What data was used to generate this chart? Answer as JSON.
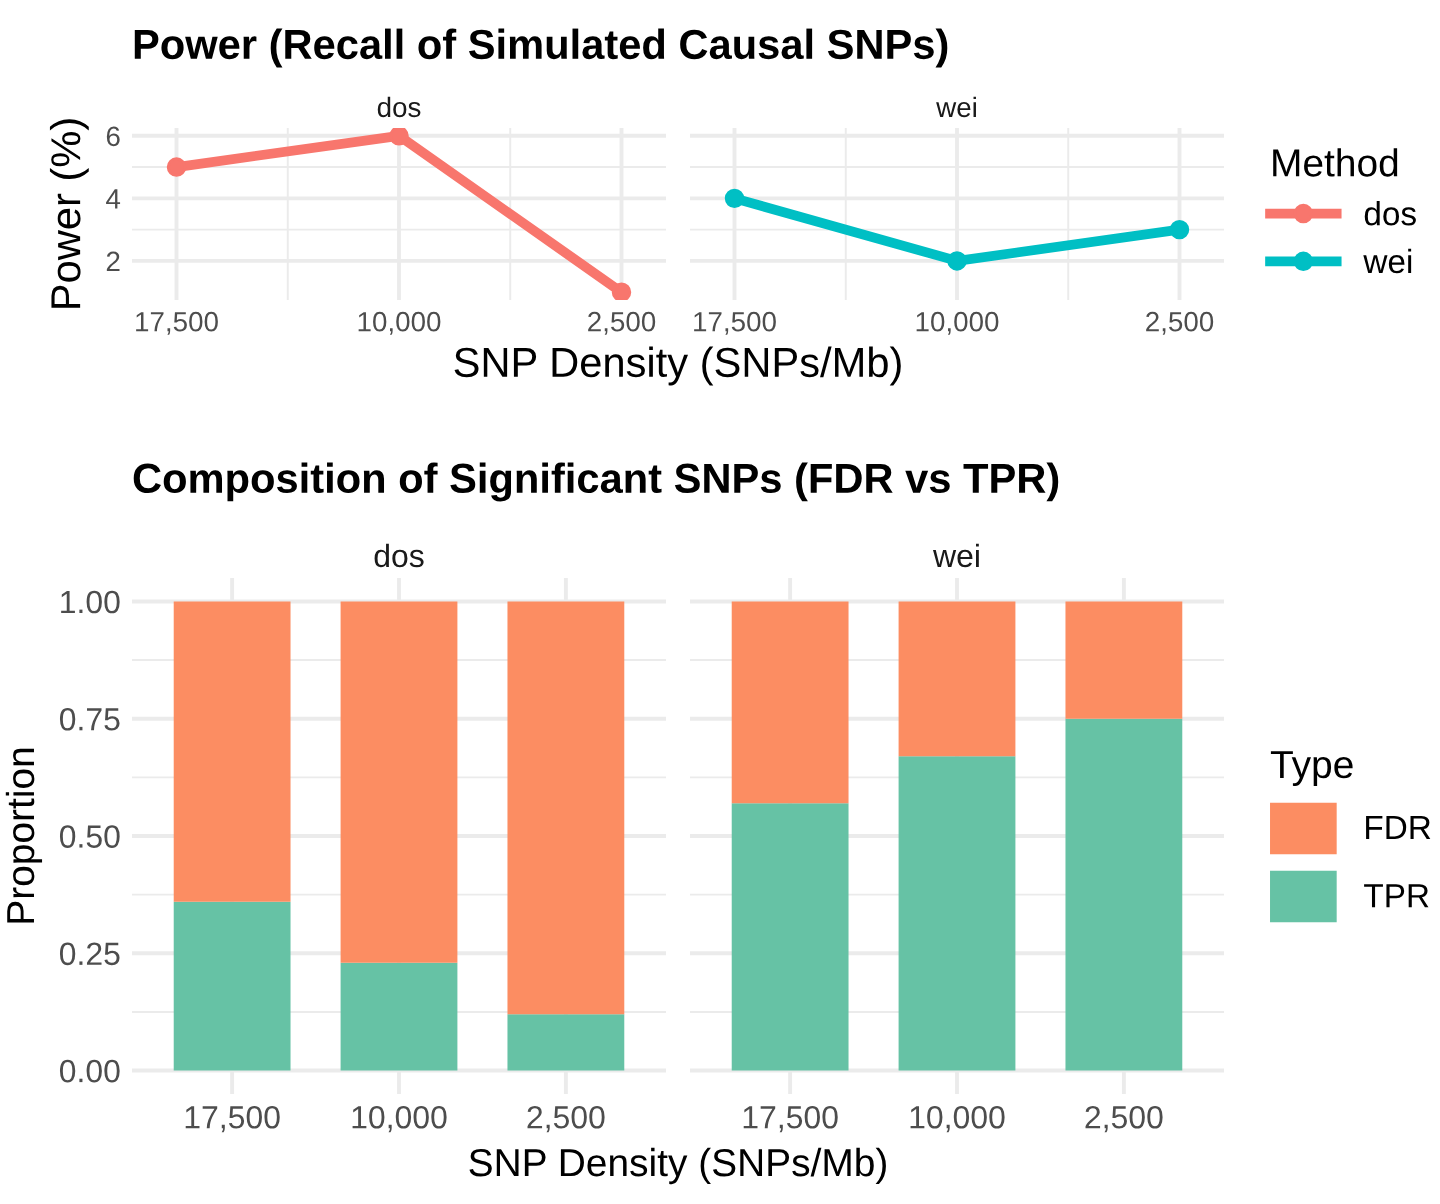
{
  "chart_data": [
    {
      "type": "line",
      "title": "Power (Recall of Simulated Causal SNPs)",
      "subtitle": "dos",
      "xlabel": "SNP Density (SNPs/Mb)",
      "ylabel": "Power (%)",
      "legend_title": "Method",
      "legend": "right",
      "categories": [
        "17,500",
        "10,000",
        "2,500"
      ],
      "ylim": [
        0.75,
        6.25
      ],
      "yticks": [
        2,
        4,
        6
      ],
      "grid": true,
      "marker": "circle",
      "line_style": "solid",
      "series": [
        {
          "name": "dos",
          "color": "#f8766d",
          "values": [
            5,
            6,
            1
          ]
        }
      ]
    },
    {
      "type": "line",
      "subtitle": "wei",
      "categories": [
        "17,500",
        "10,000",
        "2,500"
      ],
      "ylim": [
        0.75,
        6.25
      ],
      "yticks": [
        2,
        4,
        6
      ],
      "tick_labels": "x",
      "grid": true,
      "marker": "circle",
      "line_style": "solid",
      "series": [
        {
          "name": "wei",
          "color": "#00bfc4",
          "values": [
            4,
            2,
            3
          ]
        }
      ]
    },
    {
      "type": "bar",
      "stacked": true,
      "title": "Composition of Significant SNPs (FDR vs TPR)",
      "subtitle": "dos",
      "xlabel": "SNP Density (SNPs/Mb)",
      "ylabel": "Proportion",
      "legend_title": "Type",
      "legend": "right",
      "categories": [
        "17,500",
        "10,000",
        "2,500"
      ],
      "ylim": [
        -0.05,
        1.05
      ],
      "yticks": [
        {
          "value": 0,
          "label": "0.00"
        },
        {
          "value": 0.25,
          "label": "0.25"
        },
        {
          "value": 0.5,
          "label": "0.50"
        },
        {
          "value": 0.75,
          "label": "0.75"
        },
        {
          "value": 1,
          "label": "1.00"
        }
      ],
      "grid": true,
      "series": [
        {
          "name": "TPR",
          "color": "#66c2a5",
          "values": [
            0.36,
            0.23,
            0.12
          ]
        },
        {
          "name": "FDR",
          "color": "#fc8d62",
          "values": [
            0.64,
            0.77,
            0.88
          ]
        }
      ]
    },
    {
      "type": "bar",
      "stacked": true,
      "subtitle": "wei",
      "categories": [
        "17,500",
        "10,000",
        "2,500"
      ],
      "ylim": [
        -0.05,
        1.05
      ],
      "yticks": [
        0,
        0.25,
        0.5,
        0.75,
        1
      ],
      "tick_labels": "x",
      "grid": true,
      "series": [
        {
          "name": "TPR",
          "color": "#66c2a5",
          "values": [
            0.57,
            0.67,
            0.75
          ]
        },
        {
          "name": "FDR",
          "color": "#fc8d62",
          "values": [
            0.43,
            0.33,
            0.25
          ]
        }
      ]
    }
  ]
}
